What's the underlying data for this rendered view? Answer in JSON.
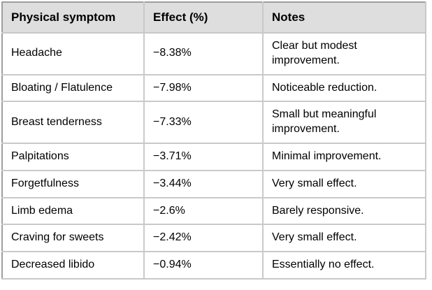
{
  "table": {
    "columns": {
      "symptom": "Physical symptom",
      "effect": "Effect (%)",
      "notes": "Notes"
    },
    "rows": [
      {
        "symptom": "Headache",
        "effect": "−8.38%",
        "notes": "Clear but modest improvement."
      },
      {
        "symptom": "Bloating / Flatulence",
        "effect": "−7.98%",
        "notes": "Noticeable reduction."
      },
      {
        "symptom": "Breast tenderness",
        "effect": "−7.33%",
        "notes": "Small but meaningful improvement."
      },
      {
        "symptom": "Palpitations",
        "effect": "−3.71%",
        "notes": "Minimal improvement."
      },
      {
        "symptom": "Forgetfulness",
        "effect": "−3.44%",
        "notes": "Very small effect."
      },
      {
        "symptom": "Limb edema",
        "effect": "−2.6%",
        "notes": "Barely responsive."
      },
      {
        "symptom": "Craving for sweets",
        "effect": "−2.42%",
        "notes": "Very small effect."
      },
      {
        "symptom": "Decreased libido",
        "effect": "−0.94%",
        "notes": "Essentially no effect."
      }
    ]
  },
  "colors": {
    "header_bg": "#dedede",
    "grid_line": "#c9c9c9",
    "outer_border": "#9e9e9e",
    "text": "#000000"
  }
}
